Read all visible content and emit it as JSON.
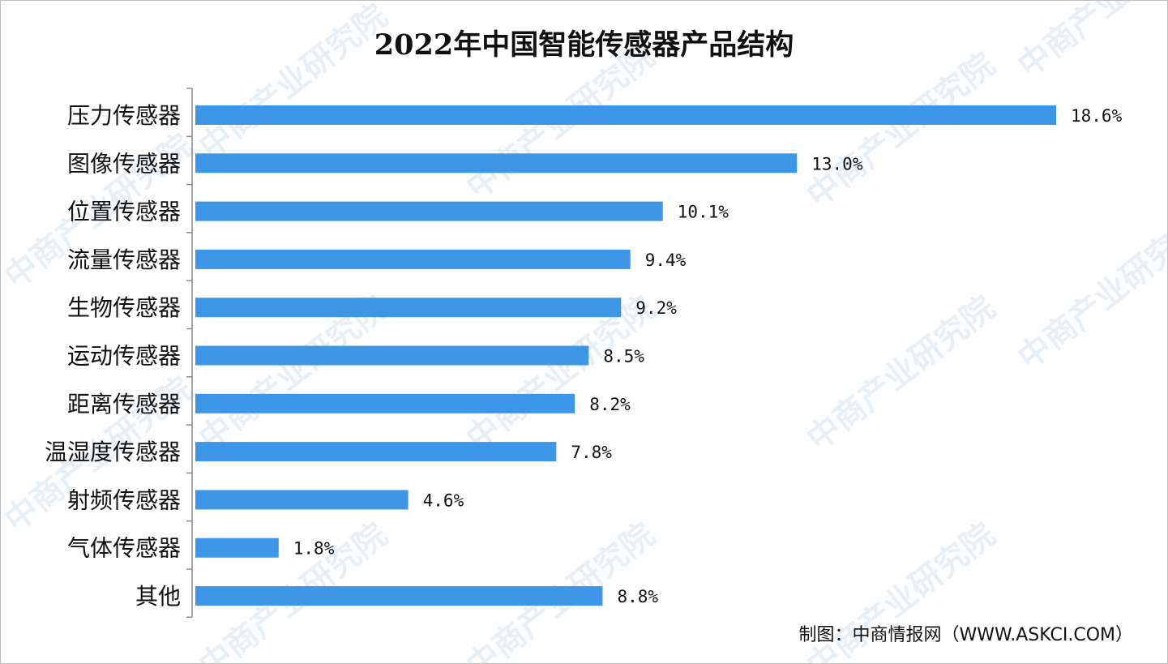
{
  "title": "2022年中国智能传感器产品结构",
  "source": "制图：中商情报网（WWW.ASKCI.COM）",
  "watermark": "中商产业研究院",
  "colors": {
    "bar": "#3d96e6",
    "axis": "#8a8a8a",
    "text": "#111111"
  },
  "chart_data": {
    "type": "bar",
    "orientation": "horizontal",
    "title": "2022年中国智能传感器产品结构",
    "categories": [
      "压力传感器",
      "图像传感器",
      "位置传感器",
      "流量传感器",
      "生物传感器",
      "运动传感器",
      "距离传感器",
      "温湿度传感器",
      "射频传感器",
      "气体传感器",
      "其他"
    ],
    "values": [
      18.6,
      13.0,
      10.1,
      9.4,
      9.2,
      8.5,
      8.2,
      7.8,
      4.6,
      1.8,
      8.8
    ],
    "value_labels": [
      "18.6%",
      "13.0%",
      "10.1%",
      "9.4%",
      "9.2%",
      "8.5%",
      "8.2%",
      "7.8%",
      "4.6%",
      "1.8%",
      "8.8%"
    ],
    "unit": "%",
    "xlim": [
      0,
      18.6
    ],
    "grid": false,
    "legend": "none"
  }
}
